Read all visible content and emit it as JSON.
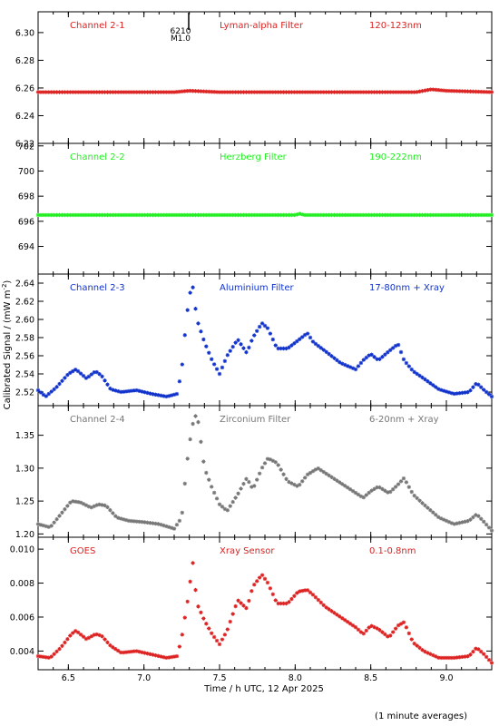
{
  "figure": {
    "y_axis_label": "Calibrated Signal / (mW m",
    "y_axis_label_sup": "-2",
    "y_axis_label_end": ")",
    "x_axis_label": "Time / h UTC, 12 Apr 2025",
    "footnote": "(1 minute averages)",
    "flare_marker": {
      "class": "M1.0",
      "id": "6210",
      "time": 7.33
    }
  },
  "chart_data": [
    {
      "type": "scatter",
      "labels": [
        "Channel 2-1",
        "Lyman-alpha Filter",
        "120-123nm"
      ],
      "color": "#dd2222",
      "ylim": [
        6.22,
        6.315
      ],
      "yticks": [
        6.22,
        6.24,
        6.26,
        6.28,
        6.3
      ],
      "ytick_labels": [
        "6.22",
        "6.24",
        "6.26",
        "6.28",
        "6.30"
      ],
      "xlim": [
        6.3,
        9.3
      ],
      "x": [
        6.3,
        7.0,
        7.2,
        7.3,
        7.5,
        8.0,
        8.8,
        8.9,
        9.0,
        9.3
      ],
      "y": [
        6.257,
        6.257,
        6.257,
        6.258,
        6.257,
        6.257,
        6.257,
        6.259,
        6.258,
        6.257
      ]
    },
    {
      "type": "scatter",
      "labels": [
        "Channel 2-2",
        "Herzberg Filter",
        "190-222nm"
      ],
      "color": "#22ee22",
      "ylim": [
        691.8,
        702.2
      ],
      "yticks": [
        694,
        696,
        698,
        700,
        702
      ],
      "ytick_labels": [
        "694",
        "696",
        "698",
        "700",
        "702"
      ],
      "xlim": [
        6.3,
        9.3
      ],
      "x": [
        6.3,
        7.0,
        7.6,
        8.0,
        8.03,
        8.06,
        8.5,
        9.3
      ],
      "y": [
        696.5,
        696.5,
        696.5,
        696.5,
        696.6,
        696.5,
        696.5,
        696.5
      ]
    },
    {
      "type": "scatter",
      "labels": [
        "Channel 2-3",
        "Aluminium Filter",
        "17-80nm + Xray"
      ],
      "color": "#1133cc",
      "ylim": [
        2.505,
        2.65
      ],
      "yticks": [
        2.52,
        2.54,
        2.56,
        2.58,
        2.6,
        2.62,
        2.64
      ],
      "ytick_labels": [
        "2.52",
        "2.54",
        "2.56",
        "2.58",
        "2.60",
        "2.62",
        "2.64"
      ],
      "xlim": [
        6.3,
        9.3
      ],
      "x": [
        6.3,
        6.35,
        6.42,
        6.5,
        6.55,
        6.62,
        6.68,
        6.72,
        6.78,
        6.85,
        6.95,
        7.05,
        7.15,
        7.22,
        7.25,
        7.28,
        7.3,
        7.32,
        7.35,
        7.4,
        7.45,
        7.5,
        7.55,
        7.62,
        7.68,
        7.72,
        7.78,
        7.82,
        7.88,
        7.95,
        8.02,
        8.08,
        8.12,
        8.2,
        8.3,
        8.4,
        8.45,
        8.5,
        8.55,
        8.62,
        8.68,
        8.72,
        8.78,
        8.85,
        8.95,
        9.05,
        9.15,
        9.2,
        9.25,
        9.3
      ],
      "y": [
        2.522,
        2.515,
        2.525,
        2.54,
        2.545,
        2.535,
        2.543,
        2.538,
        2.523,
        2.52,
        2.522,
        2.518,
        2.515,
        2.518,
        2.545,
        2.6,
        2.625,
        2.64,
        2.6,
        2.575,
        2.555,
        2.54,
        2.56,
        2.578,
        2.563,
        2.58,
        2.596,
        2.59,
        2.568,
        2.568,
        2.577,
        2.585,
        2.575,
        2.565,
        2.552,
        2.545,
        2.555,
        2.562,
        2.555,
        2.565,
        2.573,
        2.555,
        2.543,
        2.535,
        2.523,
        2.518,
        2.52,
        2.53,
        2.522,
        2.515
      ]
    },
    {
      "type": "scatter",
      "labels": [
        "Channel 2-4",
        "Zirconium Filter",
        "6-20nm + Xray"
      ],
      "color": "#777777",
      "ylim": [
        1.195,
        1.395
      ],
      "yticks": [
        1.2,
        1.25,
        1.3,
        1.35
      ],
      "ytick_labels": [
        "1.20",
        "1.25",
        "1.30",
        "1.35"
      ],
      "xlim": [
        6.3,
        9.3
      ],
      "x": [
        6.3,
        6.38,
        6.45,
        6.52,
        6.58,
        6.65,
        6.7,
        6.75,
        6.82,
        6.9,
        7.0,
        7.1,
        7.2,
        7.25,
        7.28,
        7.3,
        7.32,
        7.35,
        7.4,
        7.45,
        7.5,
        7.55,
        7.62,
        7.68,
        7.72,
        7.78,
        7.82,
        7.88,
        7.95,
        8.02,
        8.08,
        8.15,
        8.25,
        8.35,
        8.45,
        8.5,
        8.55,
        8.62,
        8.68,
        8.72,
        8.78,
        8.85,
        8.95,
        9.05,
        9.15,
        9.2,
        9.25,
        9.3
      ],
      "y": [
        1.215,
        1.21,
        1.23,
        1.25,
        1.248,
        1.24,
        1.245,
        1.243,
        1.225,
        1.22,
        1.218,
        1.215,
        1.208,
        1.225,
        1.3,
        1.335,
        1.365,
        1.385,
        1.3,
        1.27,
        1.245,
        1.235,
        1.26,
        1.285,
        1.268,
        1.3,
        1.315,
        1.308,
        1.28,
        1.272,
        1.29,
        1.3,
        1.285,
        1.27,
        1.255,
        1.265,
        1.272,
        1.262,
        1.275,
        1.285,
        1.26,
        1.245,
        1.225,
        1.215,
        1.22,
        1.23,
        1.218,
        1.205
      ]
    },
    {
      "type": "scatter",
      "labels": [
        "GOES",
        "Xray Sensor",
        "0.1-0.8nm"
      ],
      "color": "#dd2222",
      "ylim": [
        0.0029,
        0.0107
      ],
      "yticks": [
        0.004,
        0.006,
        0.008,
        0.01
      ],
      "ytick_labels": [
        "0.004",
        "0.006",
        "0.008",
        "0.010"
      ],
      "xlim": [
        6.3,
        9.3
      ],
      "x": [
        6.3,
        6.38,
        6.45,
        6.52,
        6.55,
        6.62,
        6.68,
        6.72,
        6.78,
        6.85,
        6.95,
        7.05,
        7.15,
        7.22,
        7.25,
        7.28,
        7.3,
        7.32,
        7.35,
        7.4,
        7.45,
        7.5,
        7.55,
        7.62,
        7.68,
        7.72,
        7.78,
        7.82,
        7.88,
        7.95,
        8.02,
        8.08,
        8.12,
        8.2,
        8.3,
        8.4,
        8.45,
        8.5,
        8.55,
        8.62,
        8.68,
        8.72,
        8.78,
        8.85,
        8.95,
        9.05,
        9.15,
        9.2,
        9.25,
        9.3
      ],
      "y": [
        0.0037,
        0.0036,
        0.0042,
        0.005,
        0.0052,
        0.0047,
        0.005,
        0.0049,
        0.0043,
        0.0039,
        0.004,
        0.0038,
        0.0036,
        0.0037,
        0.0048,
        0.0065,
        0.0075,
        0.0095,
        0.0068,
        0.0058,
        0.005,
        0.0044,
        0.0052,
        0.007,
        0.0065,
        0.0078,
        0.0085,
        0.008,
        0.0068,
        0.0068,
        0.0075,
        0.0076,
        0.0073,
        0.0066,
        0.006,
        0.0054,
        0.005,
        0.0055,
        0.0053,
        0.0048,
        0.0055,
        0.0057,
        0.0045,
        0.004,
        0.0036,
        0.0036,
        0.0037,
        0.0042,
        0.0038,
        0.0033
      ]
    }
  ],
  "x_axis": {
    "ticks": [
      6.5,
      7.0,
      7.5,
      8.0,
      8.5,
      9.0
    ],
    "tick_labels": [
      "6.5",
      "7.0",
      "7.5",
      "8.0",
      "8.5",
      "9.0"
    ]
  }
}
